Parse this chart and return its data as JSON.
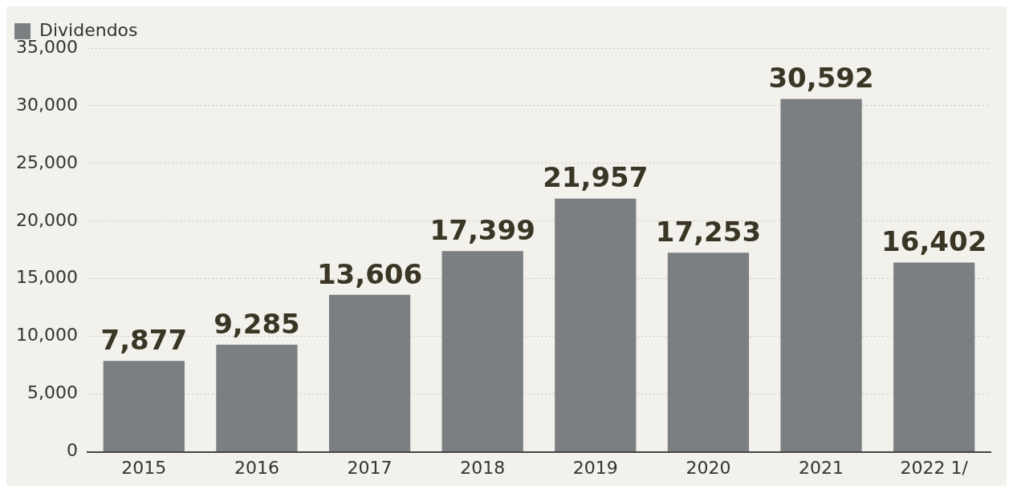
{
  "chart_data": {
    "type": "bar",
    "categories": [
      "2015",
      "2016",
      "2017",
      "2018",
      "2019",
      "2020",
      "2021",
      "2022 1/"
    ],
    "series": [
      {
        "name": "Dividendos",
        "color": "#7b7f82",
        "values": [
          7877,
          9285,
          13606,
          17399,
          21957,
          17253,
          30592,
          16402
        ],
        "value_labels": [
          "7,877",
          "9,285",
          "13,606",
          "17,399",
          "21,957",
          "17,253",
          "30,592",
          "16,402"
        ]
      }
    ],
    "ylim": [
      0,
      35000
    ],
    "yticks": [
      0,
      {
        "value": 5000,
        "label": "5,000"
      },
      {
        "value": 10000,
        "label": "10,000"
      },
      {
        "value": 15000,
        "label": "15,000"
      },
      {
        "value": 20000,
        "label": "20,000"
      },
      {
        "value": 25000,
        "label": "25,000"
      },
      {
        "value": 30000,
        "label": "30,000"
      },
      {
        "value": 35000,
        "label": "35,000"
      }
    ],
    "grid": "y",
    "legend": "top left"
  }
}
